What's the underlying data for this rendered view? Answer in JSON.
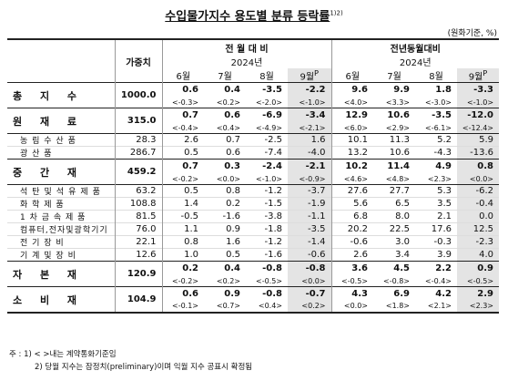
{
  "title": "수입물가지수 용도별 분류 등락률",
  "title_note": "1)2)",
  "unit": "(원화기준, %)",
  "header": {
    "weight": "가중치",
    "mom": "전 월 대 비",
    "yoy": "전년동월대비",
    "year": "2024년",
    "months": [
      "6월",
      "7월",
      "8월",
      "9월"
    ],
    "prelim": "P"
  },
  "rows": [
    {
      "type": "main",
      "label": "총 지 수",
      "weight": "1000.0",
      "top": [
        "0.6",
        "0.4",
        "-3.5",
        "-2.2",
        "9.6",
        "9.9",
        "1.8",
        "-3.3"
      ],
      "sub": [
        "<-0.3>",
        "<0.2>",
        "<-2.0>",
        "<-1.0>",
        "<4.0>",
        "<3.3>",
        "<-3.0>",
        "<-1.0>"
      ]
    },
    {
      "type": "main",
      "label": "원 재 료",
      "weight": "315.0",
      "top": [
        "0.7",
        "0.6",
        "-6.9",
        "-3.4",
        "12.9",
        "10.6",
        "-3.5",
        "-12.0"
      ],
      "sub": [
        "<-0.4>",
        "<0.4>",
        "<-4.9>",
        "<-2.1>",
        "<6.0>",
        "<2.9>",
        "<-6.1>",
        "<-12.4>"
      ]
    },
    {
      "type": "sub",
      "label": "농 림 수 산 품",
      "weight": "28.3",
      "vals": [
        "2.6",
        "0.7",
        "-2.5",
        "1.6",
        "10.1",
        "11.3",
        "5.2",
        "5.9"
      ]
    },
    {
      "type": "sub",
      "label": "광 산 품",
      "weight": "286.7",
      "vals": [
        "0.5",
        "0.6",
        "-7.4",
        "-4.0",
        "13.2",
        "10.6",
        "-4.3",
        "-13.6"
      ]
    },
    {
      "type": "main",
      "label": "중 간 재",
      "weight": "459.2",
      "top": [
        "0.7",
        "0.3",
        "-2.4",
        "-2.1",
        "10.2",
        "11.4",
        "4.9",
        "0.8"
      ],
      "sub": [
        "<-0.2>",
        "<0.0>",
        "<-1.0>",
        "<-0.9>",
        "<4.6>",
        "<4.8>",
        "<2.3>",
        "<0.0>"
      ]
    },
    {
      "type": "sub",
      "label": "석탄및석유제품",
      "weight": "63.2",
      "vals": [
        "0.5",
        "0.8",
        "-1.2",
        "-3.7",
        "27.6",
        "27.7",
        "5.3",
        "-6.2"
      ]
    },
    {
      "type": "sub",
      "label": "화 학 제 품",
      "weight": "108.8",
      "vals": [
        "1.4",
        "0.2",
        "-1.5",
        "-1.9",
        "5.6",
        "6.5",
        "3.5",
        "-0.4"
      ]
    },
    {
      "type": "sub",
      "label": "1 차 금 속 제 품",
      "weight": "81.5",
      "vals": [
        "-0.5",
        "-1.6",
        "-3.8",
        "-1.1",
        "6.8",
        "8.0",
        "2.1",
        "0.0"
      ]
    },
    {
      "type": "sub",
      "label": "컴퓨터,전자및광학기기",
      "weight": "76.0",
      "vals": [
        "1.1",
        "0.9",
        "-1.8",
        "-3.5",
        "20.2",
        "22.5",
        "17.6",
        "12.5"
      ]
    },
    {
      "type": "sub",
      "label": "전 기 장 비",
      "weight": "22.1",
      "vals": [
        "0.8",
        "1.6",
        "-1.2",
        "-1.4",
        "-0.6",
        "3.0",
        "-0.3",
        "-2.3"
      ]
    },
    {
      "type": "sub",
      "label": "기 계 및 장 비",
      "weight": "12.6",
      "vals": [
        "1.0",
        "0.5",
        "-1.6",
        "-0.6",
        "2.6",
        "3.4",
        "3.9",
        "4.0"
      ]
    },
    {
      "type": "main",
      "label": "자 본 재",
      "weight": "120.9",
      "top": [
        "0.2",
        "0.4",
        "-0.8",
        "-0.8",
        "3.6",
        "4.5",
        "2.2",
        "0.9"
      ],
      "sub": [
        "<-0.2>",
        "<0.2>",
        "<-0.5>",
        "<0.0>",
        "<-0.5>",
        "<-0.8>",
        "<-0.4>",
        "<-0.5>"
      ]
    },
    {
      "type": "main",
      "label": "소 비 재",
      "weight": "104.9",
      "top": [
        "0.6",
        "0.9",
        "-0.8",
        "-0.7",
        "4.3",
        "6.9",
        "4.2",
        "2.9"
      ],
      "sub": [
        "<-0.1>",
        "<0.7>",
        "<0.4>",
        "<0.2>",
        "<0.0>",
        "<1.8>",
        "<2.1>",
        "<2.3>"
      ]
    }
  ],
  "notes": [
    "주 : 1) < >내는 계약통화기준임",
    "2) 당월 지수는 잠정치(preliminary)이며 익월 지수 공표시 확정됨"
  ]
}
